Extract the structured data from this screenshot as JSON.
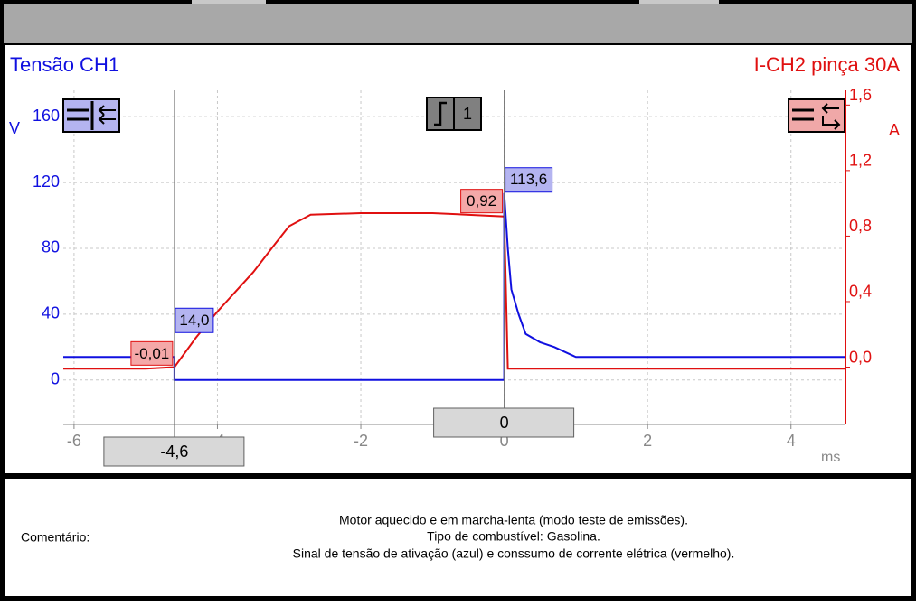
{
  "chart_data": {
    "type": "line",
    "title": "Tensão CH1",
    "title_right": "I-CH2 pinça 30A",
    "y_label": "V",
    "y2_label": "A",
    "x_label": "ms",
    "xlim": [
      -6.15,
      4.76
    ],
    "xticks": [
      -6,
      -4,
      -2,
      0,
      2,
      4
    ],
    "ylim": [
      -27,
      176
    ],
    "yticks": [
      0,
      40,
      80,
      120,
      160
    ],
    "y2lim": [
      -0.35,
      1.69
    ],
    "y2ticks": [
      {
        "value": 0,
        "label": "0,0"
      },
      {
        "value": 0.4,
        "label": "0,4"
      },
      {
        "value": 0.8,
        "label": "0,8"
      },
      {
        "value": 1.2,
        "label": "1,2"
      },
      {
        "value": 1.6,
        "label": "1,6"
      }
    ],
    "grid": true,
    "trigger_label": "1",
    "series": [
      {
        "name": "CH1",
        "color": "#1010e0",
        "x": [
          -6.15,
          -4.6,
          -4.6,
          0,
          0,
          0.05,
          0.1,
          0.2,
          0.3,
          0.5,
          0.7,
          1.0,
          4.76
        ],
        "values": [
          14,
          14,
          0,
          0,
          113.6,
          80,
          55,
          40,
          28,
          23,
          20,
          14,
          14
        ]
      },
      {
        "name": "CH2",
        "color": "#e01010",
        "axis": "y2",
        "x": [
          -6.15,
          -5.0,
          -4.6,
          -4.3,
          -4.0,
          -3.5,
          -3.2,
          -3.0,
          -2.7,
          -2.0,
          -1.0,
          0,
          0.05,
          4.76
        ],
        "values": [
          -0.01,
          -0.01,
          0.0,
          0.18,
          0.34,
          0.58,
          0.75,
          0.86,
          0.93,
          0.94,
          0.94,
          0.92,
          -0.01,
          -0.01
        ]
      }
    ],
    "cursors": [
      {
        "x": -4.6,
        "x_label": "-4,6",
        "ch1": 14.0,
        "ch1_label": "14,0",
        "ch2": -0.01,
        "ch2_label": "-0,01"
      },
      {
        "x": 0,
        "x_label": "0",
        "ch1": 113.6,
        "ch1_label": "113,6",
        "ch2": 0.92,
        "ch2_label": "0,92"
      }
    ]
  },
  "comment": {
    "label": "Comentário:",
    "lines": [
      "Motor aquecido e em marcha-lenta (modo teste de emissões).",
      "Tipo de combustível: Gasolina.",
      "Sinal de tensão de ativação (azul) e conssumo de corrente elétrica (vermelho)."
    ]
  }
}
